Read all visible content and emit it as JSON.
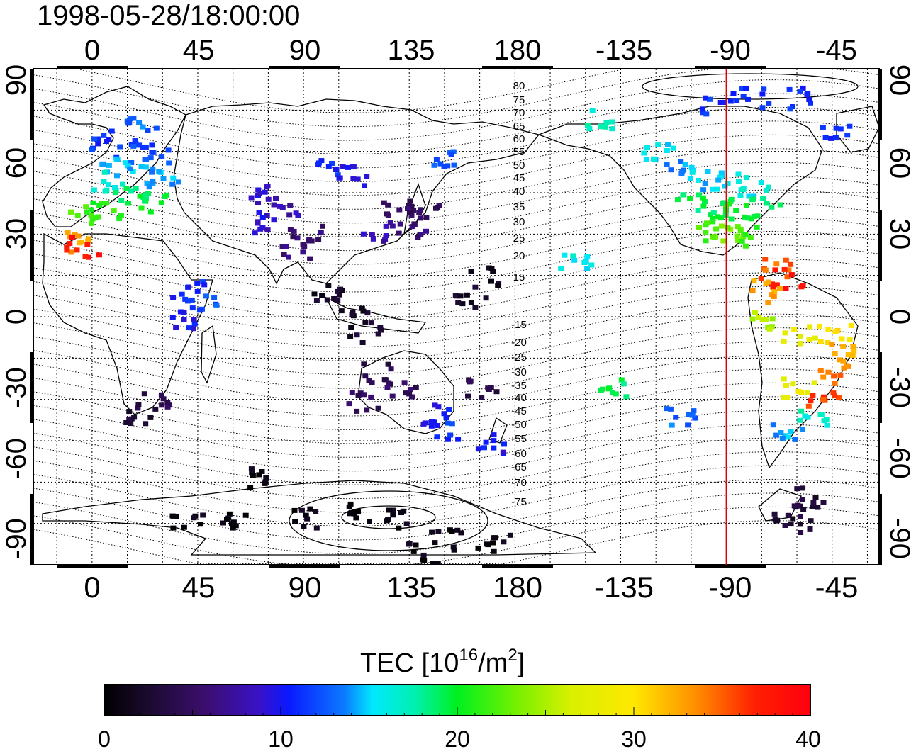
{
  "title": "1998-05-28/18:00:00",
  "top_lon_labels": [
    "0",
    "45",
    "90",
    "135",
    "180",
    "-135",
    "-90",
    "-45"
  ],
  "bottom_lon_labels": [
    "0",
    "45",
    "90",
    "135",
    "180",
    "-135",
    "-90",
    "-45"
  ],
  "left_lat_labels": [
    "90",
    "60",
    "30",
    "0",
    "-30",
    "-60",
    "-90"
  ],
  "right_lat_labels": [
    "90",
    "60",
    "30",
    "0",
    "-30",
    "-60",
    "-90"
  ],
  "contour_labels": [
    "80",
    "75",
    "70",
    "65",
    "60",
    "55",
    "50",
    "45",
    "40",
    "35",
    "30",
    "25",
    "20",
    "15",
    "-15",
    "-20",
    "-25",
    "-30",
    "-35",
    "-40",
    "-45",
    "-50",
    "-55",
    "-60",
    "-65",
    "-70",
    "-75"
  ],
  "colorbar": {
    "title_main": "TEC  [10",
    "title_sup1": "16",
    "title_mid": "/m",
    "title_sup2": "2",
    "title_end": "]",
    "tick_labels": [
      "0",
      "10",
      "20",
      "30",
      "40"
    ],
    "min": 0,
    "max": 40
  },
  "marker_line": {
    "longitude": -90,
    "color": "#e00000"
  },
  "tec_patches": [
    {
      "lon": 5,
      "lat": 65,
      "tec": 11
    },
    {
      "lon": 15,
      "lat": 62,
      "tec": 12
    },
    {
      "lon": 25,
      "lat": 60,
      "tec": 12
    },
    {
      "lon": 10,
      "lat": 55,
      "tec": 14
    },
    {
      "lon": 20,
      "lat": 52,
      "tec": 15
    },
    {
      "lon": 30,
      "lat": 50,
      "tec": 14
    },
    {
      "lon": 5,
      "lat": 50,
      "tec": 16
    },
    {
      "lon": 15,
      "lat": 45,
      "tec": 19
    },
    {
      "lon": 25,
      "lat": 42,
      "tec": 20
    },
    {
      "lon": 5,
      "lat": 40,
      "tec": 21
    },
    {
      "lon": -5,
      "lat": 38,
      "tec": 22
    },
    {
      "lon": -8,
      "lat": 28,
      "tec": 33
    },
    {
      "lon": -5,
      "lat": 26,
      "tec": 38
    },
    {
      "lon": 20,
      "lat": 70,
      "tec": 13
    },
    {
      "lon": 70,
      "lat": 45,
      "tec": 9
    },
    {
      "lon": 80,
      "lat": 40,
      "tec": 8
    },
    {
      "lon": 75,
      "lat": 35,
      "tec": 9
    },
    {
      "lon": 90,
      "lat": 30,
      "tec": 6
    },
    {
      "lon": 85,
      "lat": 25,
      "tec": 6
    },
    {
      "lon": 100,
      "lat": 55,
      "tec": 11
    },
    {
      "lon": 110,
      "lat": 52,
      "tec": 10
    },
    {
      "lon": 120,
      "lat": 32,
      "tec": 8
    },
    {
      "lon": 130,
      "lat": 40,
      "tec": 5
    },
    {
      "lon": 140,
      "lat": 38,
      "tec": 5
    },
    {
      "lon": 135,
      "lat": 33,
      "tec": 6
    },
    {
      "lon": 150,
      "lat": 58,
      "tec": 12
    },
    {
      "lon": 40,
      "lat": 10,
      "tec": 11
    },
    {
      "lon": 45,
      "lat": 5,
      "tec": 12
    },
    {
      "lon": 40,
      "lat": 0,
      "tec": 10
    },
    {
      "lon": 100,
      "lat": 10,
      "tec": 2
    },
    {
      "lon": 110,
      "lat": 5,
      "tec": 2
    },
    {
      "lon": 115,
      "lat": -5,
      "tec": 2
    },
    {
      "lon": 120,
      "lat": -20,
      "tec": 4
    },
    {
      "lon": 115,
      "lat": -30,
      "tec": 5
    },
    {
      "lon": 130,
      "lat": -25,
      "tec": 5
    },
    {
      "lon": 145,
      "lat": -35,
      "tec": 10
    },
    {
      "lon": 150,
      "lat": -40,
      "tec": 11
    },
    {
      "lon": 165,
      "lat": -25,
      "tec": 4
    },
    {
      "lon": 170,
      "lat": -45,
      "tec": 10
    },
    {
      "lon": 25,
      "lat": -30,
      "tec": 4
    },
    {
      "lon": 20,
      "lat": -35,
      "tec": 3
    },
    {
      "lon": 160,
      "lat": 5,
      "tec": 2
    },
    {
      "lon": 165,
      "lat": 15,
      "tec": 2
    },
    {
      "lon": 70,
      "lat": -58,
      "tec": 1
    },
    {
      "lon": 40,
      "lat": -72,
      "tec": 1
    },
    {
      "lon": 60,
      "lat": -74,
      "tec": 1
    },
    {
      "lon": 90,
      "lat": -72,
      "tec": 1
    },
    {
      "lon": 110,
      "lat": -70,
      "tec": 1
    },
    {
      "lon": 130,
      "lat": -72,
      "tec": 1
    },
    {
      "lon": 150,
      "lat": -80,
      "tec": 1
    },
    {
      "lon": 170,
      "lat": -82,
      "tec": 1
    },
    {
      "lon": 140,
      "lat": -85,
      "tec": 1
    },
    {
      "lon": -145,
      "lat": 72,
      "tec": 17
    },
    {
      "lon": -120,
      "lat": 60,
      "tec": 15
    },
    {
      "lon": -110,
      "lat": 55,
      "tec": 14
    },
    {
      "lon": -100,
      "lat": 50,
      "tec": 15
    },
    {
      "lon": -90,
      "lat": 50,
      "tec": 15
    },
    {
      "lon": -80,
      "lat": 48,
      "tec": 16
    },
    {
      "lon": -105,
      "lat": 42,
      "tec": 19
    },
    {
      "lon": -95,
      "lat": 40,
      "tec": 19
    },
    {
      "lon": -85,
      "lat": 38,
      "tec": 20
    },
    {
      "lon": -75,
      "lat": 40,
      "tec": 19
    },
    {
      "lon": -100,
      "lat": 32,
      "tec": 22
    },
    {
      "lon": -90,
      "lat": 30,
      "tec": 23
    },
    {
      "lon": -80,
      "lat": 30,
      "tec": 22
    },
    {
      "lon": -95,
      "lat": 78,
      "tec": 11
    },
    {
      "lon": -80,
      "lat": 80,
      "tec": 11
    },
    {
      "lon": -60,
      "lat": 80,
      "tec": 11
    },
    {
      "lon": -45,
      "lat": 68,
      "tec": 11
    },
    {
      "lon": -155,
      "lat": 22,
      "tec": 16
    },
    {
      "lon": -70,
      "lat": 18,
      "tec": 35
    },
    {
      "lon": -65,
      "lat": 15,
      "tec": 38
    },
    {
      "lon": -75,
      "lat": 10,
      "tec": 33
    },
    {
      "lon": -75,
      "lat": 0,
      "tec": 25
    },
    {
      "lon": -60,
      "lat": -5,
      "tec": 28
    },
    {
      "lon": -45,
      "lat": -5,
      "tec": 30
    },
    {
      "lon": -40,
      "lat": -12,
      "tec": 32
    },
    {
      "lon": -45,
      "lat": -20,
      "tec": 34
    },
    {
      "lon": -50,
      "lat": -28,
      "tec": 36
    },
    {
      "lon": -60,
      "lat": -25,
      "tec": 28
    },
    {
      "lon": -55,
      "lat": -35,
      "tec": 17
    },
    {
      "lon": -65,
      "lat": -40,
      "tec": 14
    },
    {
      "lon": -110,
      "lat": -35,
      "tec": 13
    },
    {
      "lon": -140,
      "lat": -25,
      "tec": 19
    },
    {
      "lon": -55,
      "lat": -65,
      "tec": 3
    },
    {
      "lon": -65,
      "lat": -70,
      "tec": 3
    },
    {
      "lon": -60,
      "lat": -75,
      "tec": 3
    }
  ]
}
